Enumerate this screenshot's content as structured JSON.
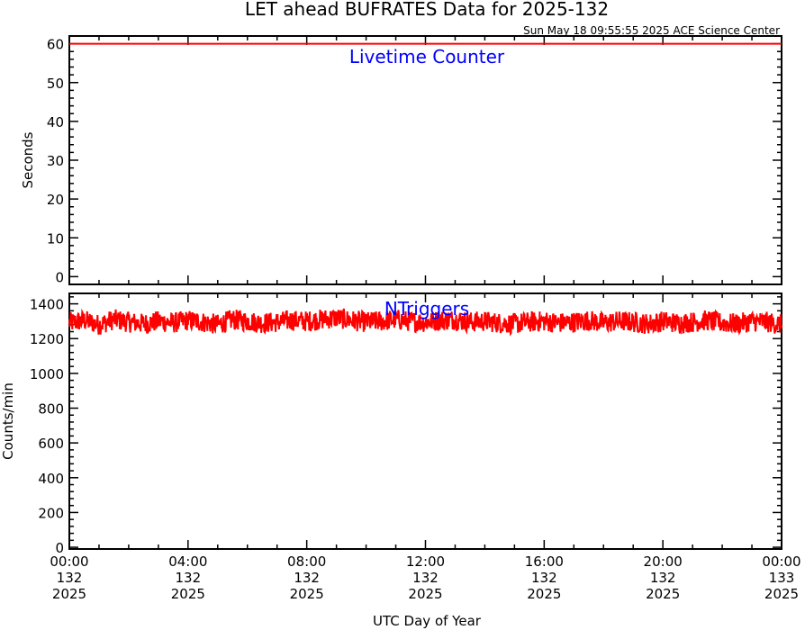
{
  "header": {
    "title": "LET ahead BUFRATES Data for 2025-132",
    "timestamp": "Sun May 18 09:55:55 2025 ACE Science Center"
  },
  "x_axis": {
    "label": "UTC Day of Year",
    "ticks": [
      {
        "time": "00:00",
        "day": "132",
        "year": "2025"
      },
      {
        "time": "04:00",
        "day": "132",
        "year": "2025"
      },
      {
        "time": "08:00",
        "day": "132",
        "year": "2025"
      },
      {
        "time": "12:00",
        "day": "132",
        "year": "2025"
      },
      {
        "time": "16:00",
        "day": "132",
        "year": "2025"
      },
      {
        "time": "20:00",
        "day": "132",
        "year": "2025"
      },
      {
        "time": "00:00",
        "day": "133",
        "year": "2025"
      }
    ]
  },
  "colors": {
    "series": "#ff0000",
    "panel_label": "#0000ff",
    "axes": "#000000"
  },
  "chart_data": [
    {
      "type": "line",
      "label": "Livetime Counter",
      "ylabel": "Seconds",
      "ylim": [
        -2,
        62
      ],
      "yticks": [
        0,
        10,
        20,
        30,
        40,
        50,
        60
      ],
      "xlim_hours": [
        0,
        24
      ],
      "x_ticks_hours": [
        0,
        4,
        8,
        12,
        16,
        20,
        24
      ],
      "series": [
        {
          "x": [
            0,
            24
          ],
          "values": [
            60,
            60
          ]
        }
      ]
    },
    {
      "type": "line",
      "label": "NTriggers",
      "ylabel": "Counts/min",
      "ylim": [
        -10,
        1460
      ],
      "yticks": [
        0,
        200,
        400,
        600,
        800,
        1000,
        1200,
        1400
      ],
      "xlim_hours": [
        0,
        24
      ],
      "x_ticks_hours": [
        0,
        4,
        8,
        12,
        16,
        20,
        24
      ],
      "series": [
        {
          "x": [
            0,
            0.5,
            1,
            1.5,
            2,
            2.5,
            3,
            3.5,
            4,
            4.5,
            5,
            5.5,
            6,
            6.5,
            7,
            7.5,
            8,
            8.5,
            9,
            9.5,
            10,
            10.5,
            11,
            11.5,
            12,
            12.5,
            13,
            13.5,
            14,
            14.5,
            15,
            15.5,
            16,
            16.5,
            17,
            17.5,
            18,
            18.5,
            19,
            19.5,
            20,
            20.5,
            21,
            21.5,
            22,
            22.5,
            23,
            23.5,
            24
          ],
          "values": [
            1290,
            1305,
            1280,
            1310,
            1295,
            1285,
            1300,
            1290,
            1305,
            1295,
            1280,
            1310,
            1300,
            1290,
            1295,
            1305,
            1300,
            1310,
            1320,
            1305,
            1295,
            1300,
            1310,
            1300,
            1295,
            1305,
            1310,
            1295,
            1300,
            1290,
            1285,
            1295,
            1300,
            1290,
            1295,
            1305,
            1290,
            1300,
            1295,
            1285,
            1300,
            1290,
            1295,
            1305,
            1290,
            1285,
            1300,
            1295,
            1280
          ]
        }
      ]
    }
  ]
}
